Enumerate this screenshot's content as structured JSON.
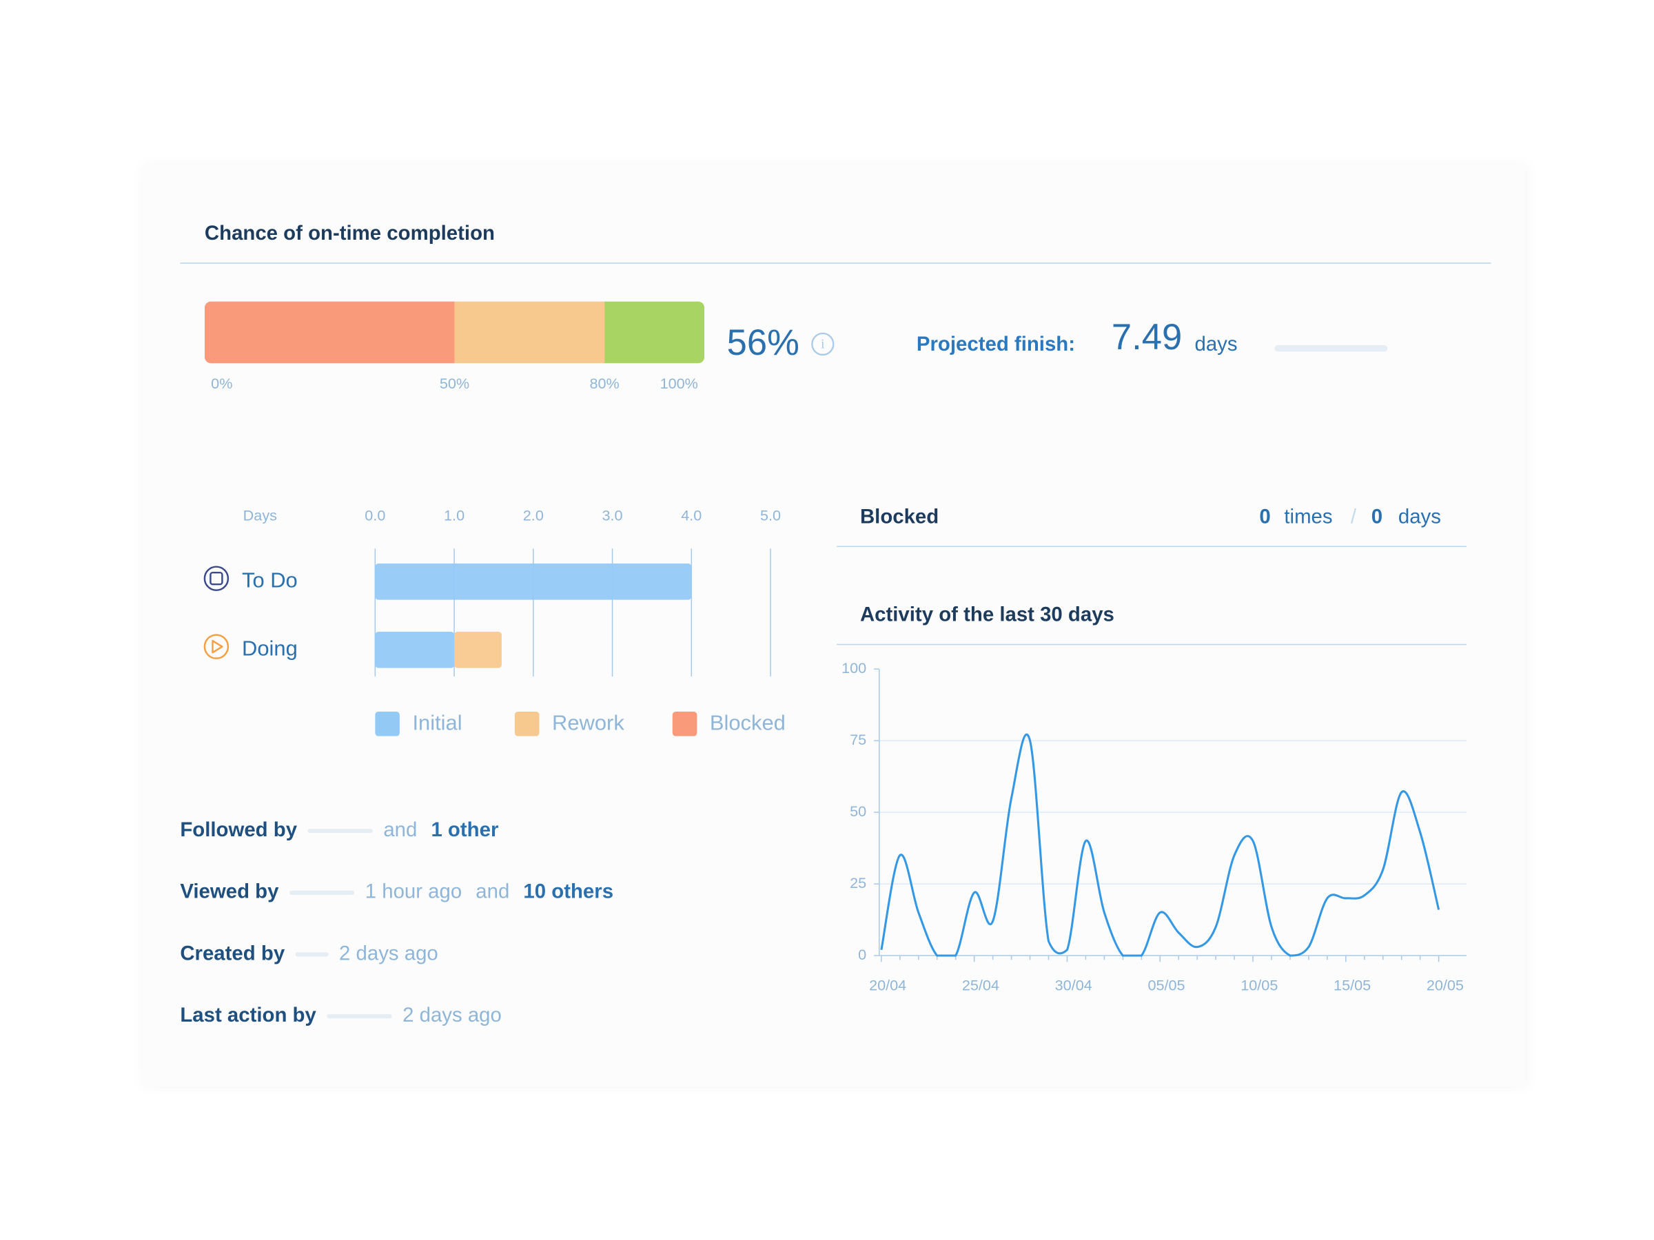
{
  "completion": {
    "title": "Chance of on-time completion",
    "ticks": [
      {
        "value": 0,
        "label": "0%"
      },
      {
        "value": 50,
        "label": "50%"
      },
      {
        "value": 80,
        "label": "80%"
      },
      {
        "value": 100,
        "label": "100%"
      }
    ],
    "colors": [
      "#f99a7a",
      "#f8c98e",
      "#a8d464"
    ],
    "chance_label": "56%",
    "projected_label": "Projected finish:",
    "projected_value": 7.49,
    "projected_unit": "days"
  },
  "status_chart": {
    "type": "bar",
    "axis_label": "Days",
    "categories": [
      "To Do",
      "Doing"
    ],
    "series": [
      {
        "name": "Initial",
        "color": "#93c9f5",
        "values": [
          4.0,
          1.0
        ]
      },
      {
        "name": "Rework",
        "color": "#f8c98e",
        "values": [
          0,
          0.6
        ]
      },
      {
        "name": "Blocked",
        "color": "#f99a7a",
        "values": [
          0,
          0
        ]
      }
    ],
    "xlim": [
      0,
      5
    ],
    "xticks": [
      {
        "value": 0,
        "label": "0.0"
      },
      {
        "value": 1,
        "label": "1.0"
      },
      {
        "value": 2,
        "label": "2.0"
      },
      {
        "value": 3,
        "label": "3.0"
      },
      {
        "value": 4,
        "label": "4.0"
      },
      {
        "value": 5,
        "label": "5.0"
      }
    ],
    "grid": true
  },
  "blocked": {
    "title": "Blocked",
    "times": 0,
    "times_label": "times",
    "separator": "/",
    "days": 0,
    "days_label": "days"
  },
  "chart_data": {
    "type": "line",
    "title": "Activity of the last 30 days",
    "x": [
      "20/04",
      null,
      null,
      null,
      null,
      "25/04",
      null,
      null,
      null,
      null,
      "30/04",
      null,
      null,
      null,
      null,
      "05/05",
      null,
      null,
      null,
      null,
      "10/05",
      null,
      null,
      null,
      null,
      "15/05",
      null,
      null,
      null,
      null,
      "20/05"
    ],
    "series": [
      {
        "name": "Activity",
        "color": "#3598e4",
        "values": [
          2,
          35,
          15,
          0,
          0,
          22,
          12,
          55,
          75,
          5,
          2,
          40,
          15,
          0,
          0,
          15,
          8,
          3,
          10,
          35,
          40,
          10,
          0,
          3,
          20,
          20,
          21,
          30,
          57,
          43,
          16
        ]
      }
    ],
    "ylim": [
      0,
      100
    ],
    "yticks": [
      0,
      25,
      50,
      75,
      100
    ],
    "grid": true
  },
  "people": [
    {
      "label": "Followed by",
      "and": "and",
      "others": "1 other"
    },
    {
      "label": "Viewed by",
      "time": "1 hour ago",
      "and": "and",
      "others": "10 others"
    },
    {
      "label": "Created by",
      "time": "2 days ago"
    },
    {
      "label": "Last action by",
      "time": "2 days ago"
    }
  ]
}
